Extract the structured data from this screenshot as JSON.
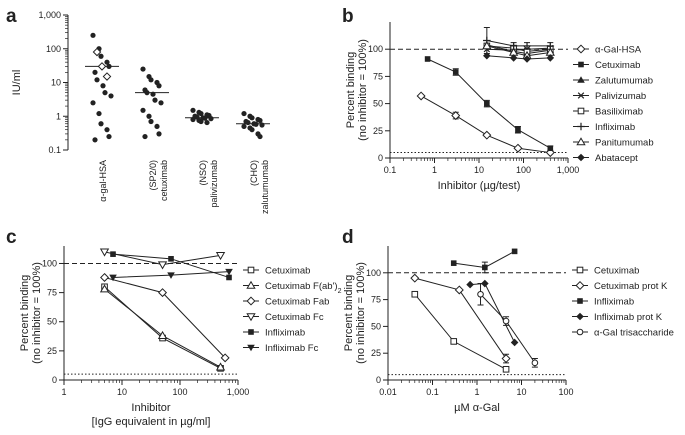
{
  "chart_data": [
    {
      "panel": "a",
      "type": "scatter",
      "ylabel": "IU/ml",
      "yscale": "log",
      "ylim": [
        0.1,
        1000
      ],
      "yticks": [
        {
          "v": 0.1,
          "t": "0.1"
        },
        {
          "v": 1,
          "t": "1"
        },
        {
          "v": 10,
          "t": "10"
        },
        {
          "v": 100,
          "t": "100"
        },
        {
          "v": 1000,
          "t": "1,000"
        }
      ],
      "categories": [
        {
          "label1": "α-gal-HSA",
          "label2": ""
        },
        {
          "label1": "(SP2/0)",
          "label2": "cetuximab"
        },
        {
          "label1": "(NSO)",
          "label2": "palivizumab"
        },
        {
          "label1": "(CHO)",
          "label2": "zalutumumab"
        }
      ],
      "groups": [
        {
          "median": 30,
          "filled": [
            250,
            100,
            60,
            40,
            30,
            20,
            12,
            8,
            5,
            4,
            2.5,
            1.2,
            0.6,
            0.4,
            0.25,
            0.2
          ],
          "open": [
            80,
            30,
            15
          ]
        },
        {
          "median": 5,
          "filled": [
            25,
            15,
            12,
            10,
            8,
            6,
            5,
            4.5,
            3,
            2.5,
            1.5,
            1,
            0.7,
            0.5,
            0.3,
            0.25
          ],
          "open": []
        },
        {
          "median": 0.9,
          "filled": [
            1.5,
            1.3,
            1.2,
            1.1,
            1.05,
            1,
            0.95,
            0.9,
            0.88,
            0.85,
            0.8,
            0.75,
            0.7,
            0.65
          ],
          "open": []
        },
        {
          "median": 0.6,
          "filled": [
            1.2,
            1,
            0.9,
            0.8,
            0.75,
            0.7,
            0.65,
            0.6,
            0.58,
            0.55,
            0.5,
            0.45,
            0.4,
            0.3,
            0.25
          ],
          "open": []
        }
      ]
    },
    {
      "panel": "b",
      "type": "line",
      "xscale": "log",
      "xlim": [
        0.1,
        1000
      ],
      "ylim": [
        0,
        125
      ],
      "xlabel": "Inhibitor (µg/test)",
      "ylabel1": "Percent binding",
      "ylabel2": "(no inhibitor = 100%)",
      "xticks": [
        {
          "v": 0.1,
          "t": "0.1"
        },
        {
          "v": 1,
          "t": "1"
        },
        {
          "v": 10,
          "t": "10"
        },
        {
          "v": 100,
          "t": "100"
        },
        {
          "v": 1000,
          "t": "1,000"
        }
      ],
      "yticks": [
        {
          "v": 0,
          "t": "0"
        },
        {
          "v": 25,
          "t": "25"
        },
        {
          "v": 50,
          "t": "50"
        },
        {
          "v": 75,
          "t": "75"
        },
        {
          "v": 100,
          "t": "100"
        }
      ],
      "refline": 100,
      "baseline": 5,
      "series": [
        {
          "name": "α-Gal-HSA",
          "marker": "diamond-open",
          "x": [
            0.5,
            3,
            15,
            75,
            400
          ],
          "y": [
            57,
            39,
            21,
            9,
            5
          ],
          "err": [
            0,
            3,
            1,
            1,
            1
          ]
        },
        {
          "name": "Cetuximab",
          "marker": "square-filled",
          "x": [
            0.7,
            3,
            15,
            75,
            400
          ],
          "y": [
            91,
            79,
            50,
            26,
            9
          ],
          "err": [
            0,
            3,
            3,
            3,
            2
          ]
        },
        {
          "name": "Zalutumumab",
          "marker": "triangle-filled",
          "x": [
            15,
            60,
            120,
            400
          ],
          "y": [
            104,
            98,
            96,
            99
          ],
          "err": [
            0,
            0,
            0,
            0
          ]
        },
        {
          "name": "Palivizumab",
          "marker": "x",
          "x": [
            15,
            60,
            120,
            400
          ],
          "y": [
            100,
            99,
            100,
            101
          ],
          "err": [
            0,
            0,
            0,
            0
          ]
        },
        {
          "name": "Basiliximab",
          "marker": "square-open",
          "x": [
            15,
            60,
            120,
            400
          ],
          "y": [
            103,
            101,
            98,
            100
          ],
          "err": [
            0,
            0,
            0,
            0
          ]
        },
        {
          "name": "Infliximab",
          "marker": "plus",
          "x": [
            15,
            60,
            120,
            400
          ],
          "y": [
            108,
            103,
            103,
            103
          ],
          "err": [
            12,
            3,
            3,
            3
          ]
        },
        {
          "name": "Panitumumab",
          "marker": "triangle-open",
          "x": [
            15,
            60,
            120,
            400
          ],
          "y": [
            103,
            97,
            94,
            97
          ],
          "err": [
            0,
            0,
            0,
            0
          ]
        },
        {
          "name": "Abatacept",
          "marker": "diamond-filled",
          "x": [
            15,
            60,
            120,
            400
          ],
          "y": [
            94,
            92,
            91,
            92
          ],
          "err": [
            0,
            0,
            0,
            0
          ]
        }
      ]
    },
    {
      "panel": "c",
      "type": "line",
      "xscale": "log",
      "xlim": [
        1,
        1000
      ],
      "ylim": [
        0,
        115
      ],
      "xlabel": "Inhibitor",
      "xlabel2": "[IgG equivalent in µg/ml]",
      "ylabel1": "Percent binding",
      "ylabel2": "(no inhibitor = 100%)",
      "xticks": [
        {
          "v": 1,
          "t": "1"
        },
        {
          "v": 10,
          "t": "10"
        },
        {
          "v": 100,
          "t": "100"
        },
        {
          "v": 1000,
          "t": "1,000"
        }
      ],
      "yticks": [
        {
          "v": 0,
          "t": "0"
        },
        {
          "v": 25,
          "t": "25"
        },
        {
          "v": 50,
          "t": "50"
        },
        {
          "v": 75,
          "t": "75"
        },
        {
          "v": 100,
          "t": "100"
        }
      ],
      "refline": 100,
      "baseline": 5,
      "series": [
        {
          "name": "Cetuximab",
          "sub": "",
          "marker": "square-open",
          "x": [
            5,
            50,
            500
          ],
          "y": [
            80,
            36,
            10
          ]
        },
        {
          "name": "Cetuximab F(ab')",
          "sub": "2",
          "marker": "triangle-open",
          "x": [
            5,
            50,
            500
          ],
          "y": [
            78,
            38,
            11
          ]
        },
        {
          "name": "Cetuximab Fab",
          "sub": "",
          "marker": "diamond-open",
          "x": [
            5,
            50,
            600
          ],
          "y": [
            88,
            75,
            19
          ]
        },
        {
          "name": "Cetuximab Fc",
          "sub": "",
          "marker": "triangle-down-open",
          "x": [
            5,
            50,
            500
          ],
          "y": [
            110,
            99,
            107
          ]
        },
        {
          "name": "Infliximab",
          "sub": "",
          "marker": "square-filled",
          "x": [
            7,
            70,
            700
          ],
          "y": [
            108,
            104,
            88
          ]
        },
        {
          "name": "Infliximab Fc",
          "sub": "",
          "marker": "triangle-down-filled",
          "x": [
            7,
            70,
            700
          ],
          "y": [
            88,
            90,
            93
          ]
        }
      ]
    },
    {
      "panel": "d",
      "type": "line",
      "xscale": "log",
      "xlim": [
        0.01,
        100
      ],
      "ylim": [
        0,
        125
      ],
      "xlabel": "µM α-Gal",
      "ylabel1": "Percent binding",
      "ylabel2": "(no inhibitor = 100%)",
      "xticks": [
        {
          "v": 0.01,
          "t": "0.01"
        },
        {
          "v": 0.1,
          "t": "0.1"
        },
        {
          "v": 1,
          "t": "1"
        },
        {
          "v": 10,
          "t": "10"
        },
        {
          "v": 100,
          "t": "100"
        }
      ],
      "yticks": [
        {
          "v": 0,
          "t": "0"
        },
        {
          "v": 25,
          "t": "25"
        },
        {
          "v": 50,
          "t": "50"
        },
        {
          "v": 75,
          "t": "75"
        },
        {
          "v": 100,
          "t": "100"
        }
      ],
      "refline": 100,
      "baseline": 5,
      "series": [
        {
          "name": "Cetuximab",
          "marker": "square-open",
          "x": [
            0.04,
            0.3,
            4.5
          ],
          "y": [
            80,
            36,
            10
          ],
          "err": [
            0,
            0,
            2
          ]
        },
        {
          "name": "Cetuximab prot K",
          "marker": "diamond-open",
          "x": [
            0.04,
            0.4,
            4.5
          ],
          "y": [
            95,
            84,
            20
          ],
          "err": [
            0,
            0,
            4
          ]
        },
        {
          "name": "Infliximab",
          "marker": "square-filled",
          "x": [
            0.3,
            1.5,
            7
          ],
          "y": [
            109,
            105,
            120
          ],
          "err": [
            0,
            5,
            0
          ]
        },
        {
          "name": "Infliximab prot K",
          "marker": "diamond-filled",
          "x": [
            0.7,
            1.5,
            7
          ],
          "y": [
            89,
            90,
            35
          ],
          "err": [
            0,
            0,
            0
          ]
        },
        {
          "name": "α-Gal trisaccharide",
          "marker": "circle-open",
          "x": [
            1.2,
            4.5,
            20
          ],
          "y": [
            80,
            55,
            16
          ],
          "err": [
            10,
            4,
            4
          ]
        }
      ]
    }
  ]
}
